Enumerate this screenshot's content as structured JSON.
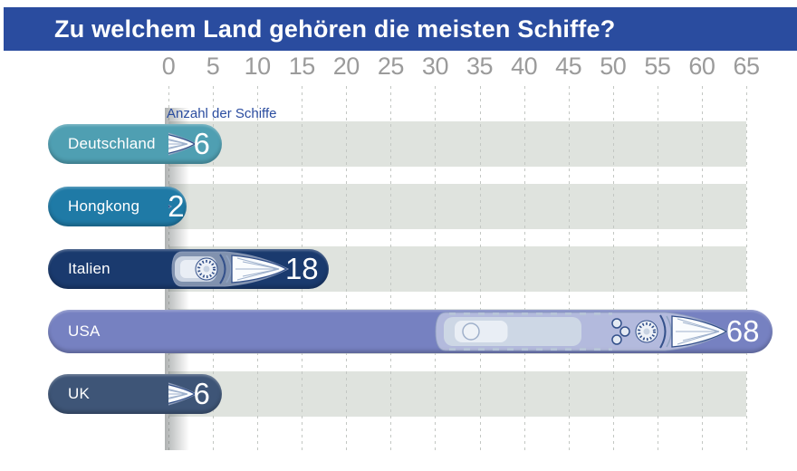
{
  "title": "Zu welchem Land gehören die meisten Schiffe?",
  "axis_label": "Anzahl der Schiffe",
  "chart_data": {
    "type": "bar",
    "orientation": "horizontal",
    "title": "Zu welchem Land gehören die meisten Schiffe?",
    "xlabel": "Anzahl der Schiffe",
    "xlim": [
      0,
      65
    ],
    "xticks": [
      0,
      5,
      10,
      15,
      20,
      25,
      30,
      35,
      40,
      45,
      50,
      55,
      60,
      65
    ],
    "grid": "vertical-dashed",
    "legend": "none",
    "categories": [
      "Deutschland",
      "Hongkong",
      "Italien",
      "USA",
      "UK"
    ],
    "values": [
      6,
      2,
      18,
      68,
      6
    ],
    "bar_colors": [
      "#4f9fb2",
      "#1f7aa6",
      "#1a3a6e",
      "#7681c1",
      "#3e5577"
    ]
  },
  "colors": {
    "title_bar": "#2a4c9f",
    "band": "#dfe3de",
    "gridline": "#c3c7c3",
    "tick_text": "#9b9b9b",
    "axis_label_text": "#2a4c9f",
    "bar_label_text": "#ffffff",
    "value_text": "#ffffff",
    "background": "#ffffff"
  }
}
